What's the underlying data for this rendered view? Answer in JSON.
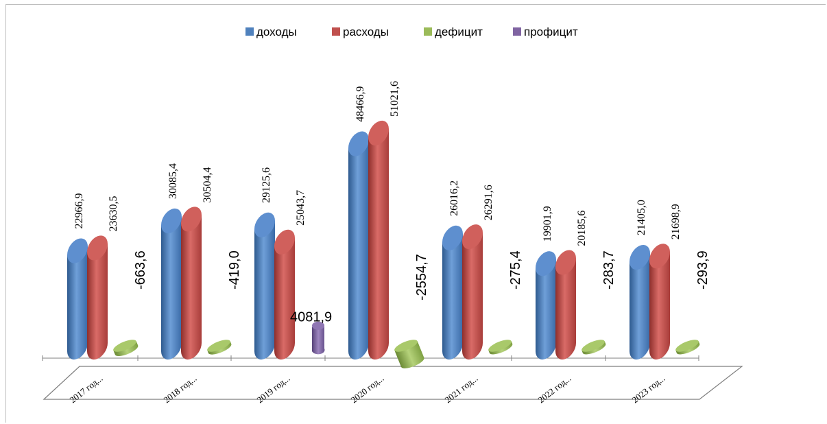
{
  "chart_data": {
    "type": "bar",
    "categories": [
      "2017 год...",
      "2018 год...",
      "2019 год...",
      "2020 год...",
      "2021 год...",
      "2022 год...",
      "2023 год..."
    ],
    "series": [
      {
        "name": "доходы",
        "color": "#4f81bd",
        "values": [
          "22966,9",
          "30085,4",
          "29125,6",
          "48466,9",
          "26016,2",
          "19901,9",
          "21405,0"
        ]
      },
      {
        "name": "расходы",
        "color": "#c0504d",
        "values": [
          "23630,5",
          "30504,4",
          "25043,7",
          "51021,6",
          "26291,6",
          "20185,6",
          "21698,9"
        ]
      },
      {
        "name": "дефицит",
        "color": "#9bbb59",
        "values": [
          "-663,6",
          "-419,0",
          null,
          "-2554,7",
          "-275,4",
          "-283,7",
          "-293,9"
        ]
      },
      {
        "name": "профицит",
        "color": "#8064a2",
        "values": [
          null,
          null,
          "4081,9",
          null,
          null,
          null,
          null
        ]
      }
    ],
    "legend_position": "top",
    "grid": false
  }
}
